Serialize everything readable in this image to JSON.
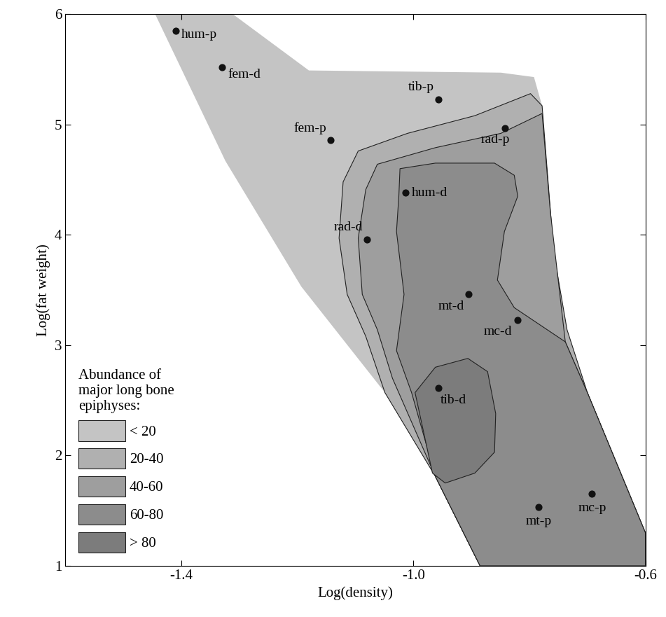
{
  "chart_data": {
    "type": "contour_scatter",
    "x_label": "Log(density)",
    "y_label": "Log(fat weight)",
    "xlim": [
      -1.6,
      -0.6
    ],
    "ylim": [
      1,
      6
    ],
    "xticks": [
      -1.4,
      -1.0,
      -0.6
    ],
    "yticks": [
      1,
      2,
      3,
      4,
      5,
      6
    ],
    "grid": false,
    "legend": "lower left",
    "legend_title": "Abundance of\nmajor long bone\nepiphyses:",
    "points": {
      "labels": [
        "hum-p",
        "fem-d",
        "tib-p",
        "fem-p",
        "rad-p",
        "hum-d",
        "rad-d",
        "mt-d",
        "mc-d",
        "tib-d",
        "mt-p",
        "mc-p"
      ],
      "x": [
        -1.41,
        -1.33,
        -0.957,
        -1.143,
        -0.842,
        -1.013,
        -1.08,
        -0.905,
        -0.82,
        -0.957,
        -0.784,
        -0.692
      ],
      "y": [
        5.85,
        5.52,
        5.23,
        4.86,
        4.97,
        4.38,
        3.96,
        3.46,
        3.23,
        2.61,
        1.53,
        1.65
      ],
      "color": "#111111"
    },
    "regions": [
      {
        "label": "< 20",
        "color": "#c4c4c4",
        "x": [
          -1.445,
          -1.311,
          -1.18,
          -0.849,
          -0.792,
          -0.778,
          -0.758,
          -0.735,
          -0.7,
          -0.6,
          -0.6,
          -0.885,
          -0.962,
          -1.049,
          -1.193,
          -1.324
        ],
        "y": [
          6.0,
          6.0,
          5.49,
          5.47,
          5.43,
          5.17,
          3.84,
          3.14,
          2.57,
          1.3,
          1.0,
          1.0,
          1.81,
          2.57,
          3.53,
          4.67
        ]
      },
      {
        "label": "20-40",
        "color": "#b0b0b0",
        "x": [
          -0.798,
          -0.894,
          -1.01,
          -1.095,
          -1.121,
          -1.128,
          -1.114,
          -1.082,
          -1.049,
          -0.962,
          -0.885,
          -0.6,
          -0.6,
          -0.7,
          -0.735,
          -0.758,
          -0.778
        ],
        "y": [
          5.28,
          5.08,
          4.92,
          4.76,
          4.48,
          3.97,
          3.46,
          3.08,
          2.57,
          1.81,
          1.0,
          1.0,
          1.3,
          2.57,
          3.14,
          3.84,
          5.17
        ]
      },
      {
        "label": "40-60",
        "color": "#9e9e9e",
        "x": [
          -0.778,
          -0.849,
          -0.962,
          -1.062,
          -1.082,
          -1.095,
          -1.088,
          -1.062,
          -1.036,
          -0.962,
          -0.885,
          -0.6,
          -0.6,
          -0.7,
          -0.738,
          -0.764
        ],
        "y": [
          5.1,
          4.92,
          4.79,
          4.64,
          4.41,
          3.97,
          3.46,
          3.14,
          2.7,
          1.81,
          1.0,
          1.0,
          1.3,
          2.57,
          3.03,
          4.22
        ]
      },
      {
        "label": "60-80",
        "color": "#8c8c8c",
        "x": [
          -1.023,
          -0.962,
          -0.86,
          -0.826,
          -0.82,
          -0.843,
          -0.855,
          -0.826,
          -0.738,
          -0.7,
          -0.6,
          -0.6,
          -0.885,
          -0.962,
          -1.003,
          -1.029,
          -1.016,
          -1.029,
          -1.025
        ],
        "y": [
          4.6,
          4.65,
          4.65,
          4.54,
          4.35,
          4.03,
          3.59,
          3.34,
          3.03,
          2.57,
          1.3,
          1.0,
          1.0,
          1.81,
          2.57,
          2.95,
          3.46,
          4.03,
          4.35
        ]
      },
      {
        "label": "> 80",
        "color": "#7c7c7c",
        "x": [
          -0.997,
          -0.962,
          -0.906,
          -0.872,
          -0.858,
          -0.86,
          -0.894,
          -0.945,
          -0.967
        ],
        "y": [
          2.57,
          2.8,
          2.88,
          2.76,
          2.38,
          2.03,
          1.84,
          1.75,
          1.84
        ]
      }
    ]
  }
}
